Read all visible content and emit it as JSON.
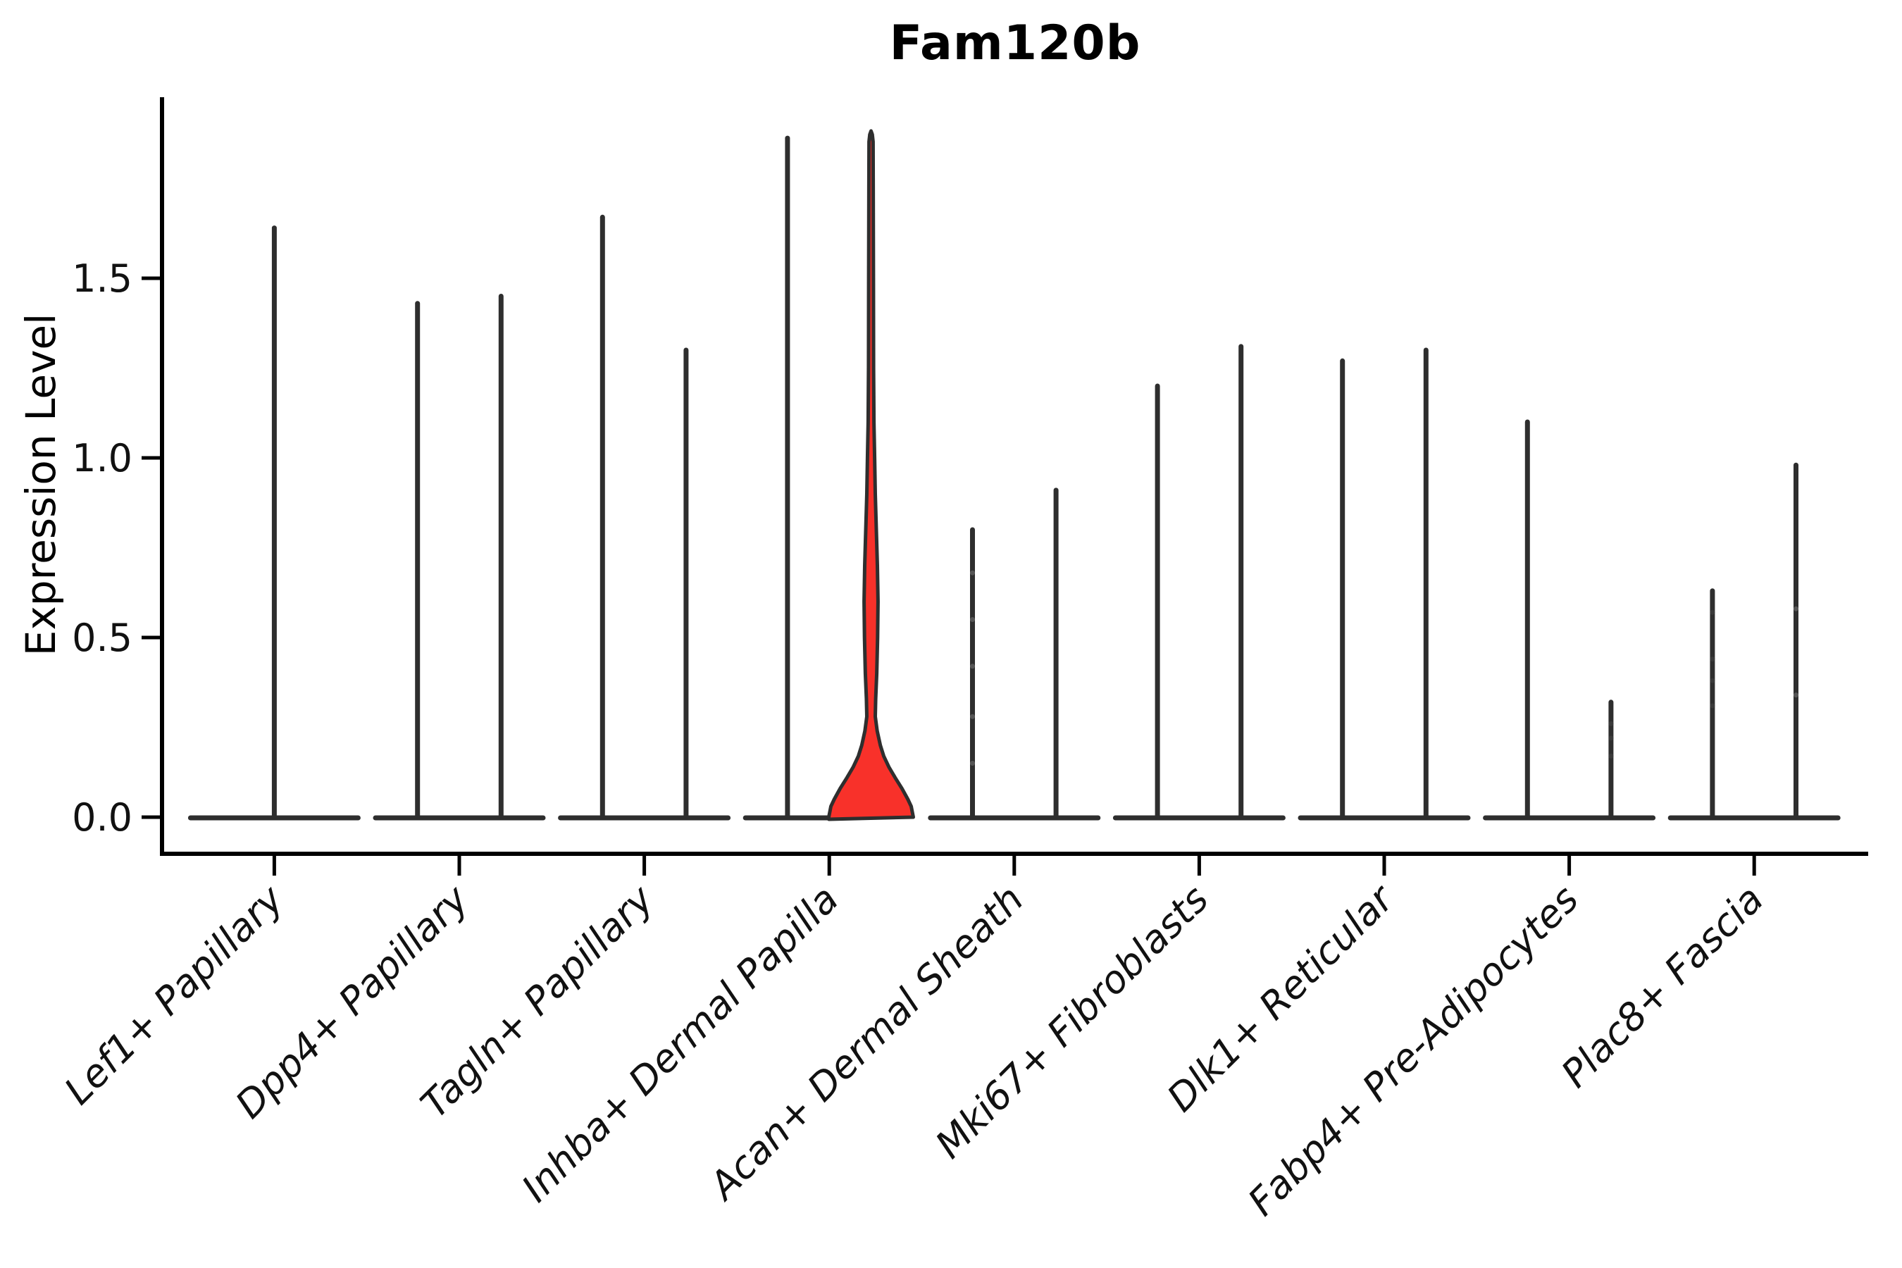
{
  "chart_data": {
    "type": "violin",
    "title": "Fam120b",
    "ylabel": "Expression Level",
    "xlabel": "",
    "grid": false,
    "legend": "none",
    "ylim": [
      -0.1,
      2.0
    ],
    "ytick_values": [
      0.0,
      0.5,
      1.0,
      1.5
    ],
    "ytick_labels": [
      "0.0",
      "0.5",
      "1.0",
      "1.5"
    ],
    "categories": [
      "Lef1+ Papillary",
      "Dpp4+ Papillary",
      "Tagln+ Papillary",
      "Inhba+ Dermal Papilla",
      "Acan+ Dermal Sheath",
      "Mki67+ Fibroblasts",
      "Dlk1+ Reticular",
      "Fabp4+ Pre-Adipocytes",
      "Plac8+ Fascia"
    ],
    "violins": [
      {
        "label": "Lef1+ Papillary",
        "layout": "single",
        "peaks": [
          1.64
        ]
      },
      {
        "label": "Dpp4+ Papillary",
        "layout": "pair",
        "peaks": [
          1.43,
          1.45
        ]
      },
      {
        "label": "Tagln+ Papillary",
        "layout": "pair",
        "peaks": [
          1.67,
          1.3
        ]
      },
      {
        "label": "Inhba+ Dermal Papilla",
        "layout": "pair",
        "peaks": [
          1.89,
          1.91
        ],
        "highlight": {
          "member": 1,
          "fill": "#f8312a",
          "profile": [
            [
              0.0,
              1.0
            ],
            [
              0.03,
              0.95
            ],
            [
              0.05,
              0.87
            ],
            [
              0.08,
              0.73
            ],
            [
              0.11,
              0.57
            ],
            [
              0.14,
              0.42
            ],
            [
              0.17,
              0.3
            ],
            [
              0.2,
              0.22
            ],
            [
              0.24,
              0.145
            ],
            [
              0.28,
              0.1
            ],
            [
              0.33,
              0.11
            ],
            [
              0.4,
              0.135
            ],
            [
              0.5,
              0.155
            ],
            [
              0.6,
              0.165
            ],
            [
              0.7,
              0.15
            ],
            [
              0.8,
              0.125
            ],
            [
              0.9,
              0.1
            ],
            [
              1.0,
              0.085
            ],
            [
              1.1,
              0.068
            ],
            [
              1.25,
              0.06
            ],
            [
              1.5,
              0.056
            ],
            [
              1.75,
              0.052
            ],
            [
              1.88,
              0.048
            ],
            [
              1.9,
              0.03
            ],
            [
              1.91,
              0.0
            ]
          ]
        }
      },
      {
        "label": "Acan+ Dermal Sheath",
        "layout": "pair",
        "peaks": [
          0.8,
          0.91
        ],
        "dots": [
          {
            "member": 0,
            "values": [
              0.15,
              0.28,
              0.42,
              0.55,
              0.68
            ],
            "color": "#555555"
          }
        ]
      },
      {
        "label": "Mki67+ Fibroblasts",
        "layout": "pair",
        "peaks": [
          1.2,
          1.31
        ]
      },
      {
        "label": "Dlk1+ Reticular",
        "layout": "pair",
        "peaks": [
          1.27,
          1.3
        ]
      },
      {
        "label": "Fabp4+ Pre-Adipocytes",
        "layout": "pair",
        "peaks": [
          1.1,
          0.32
        ],
        "dots": [
          {
            "member": 1,
            "values": [
              0.17,
              0.22,
              0.26
            ],
            "color": "#3a3a3a"
          }
        ]
      },
      {
        "label": "Plac8+ Fascia",
        "layout": "pair",
        "peaks": [
          0.63,
          0.98
        ],
        "dots": [
          {
            "member": 0,
            "values": [
              0.31,
              0.38,
              0.44,
              0.57
            ],
            "color": "#3a3a3a"
          },
          {
            "member": 1,
            "values": [
              0.34,
              0.58
            ],
            "color": "#555555"
          }
        ]
      }
    ],
    "colors": {
      "violin_stroke": "#2e2e2e",
      "highlight_fill": "#f8312a",
      "axis": "#000000",
      "text": "#111111",
      "background": "#ffffff"
    }
  }
}
